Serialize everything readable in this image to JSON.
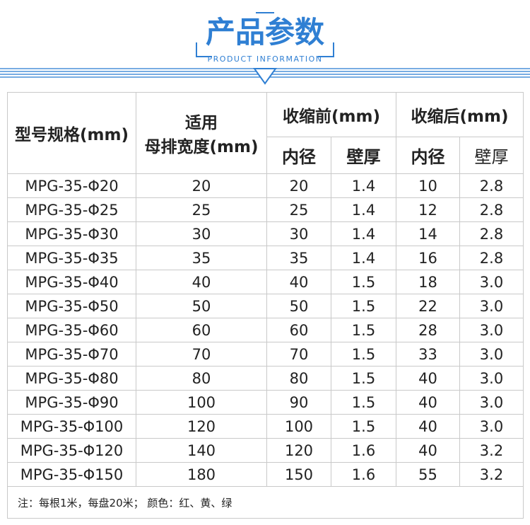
{
  "header": {
    "title": "产品参数",
    "subtitle": "PRODUCT INFORMATION"
  },
  "table": {
    "headers": {
      "model": "型号规格(mm)",
      "busbar_line1": "适用",
      "busbar_line2": "母排宽度(mm)",
      "before": "收缩前(mm)",
      "after": "收缩后(mm)",
      "sub": [
        "内径",
        "壁厚",
        "内径",
        "壁厚"
      ]
    },
    "rows": [
      [
        "MPG-35-Φ20",
        "20",
        "20",
        "1.4",
        "10",
        "2.8"
      ],
      [
        "MPG-35-Φ25",
        "25",
        "25",
        "1.4",
        "12",
        "2.8"
      ],
      [
        "MPG-35-Φ30",
        "30",
        "30",
        "1.4",
        "14",
        "2.8"
      ],
      [
        "MPG-35-Φ35",
        "35",
        "35",
        "1.4",
        "16",
        "2.8"
      ],
      [
        "MPG-35-Φ40",
        "40",
        "40",
        "1.5",
        "18",
        "3.0"
      ],
      [
        "MPG-35-Φ50",
        "50",
        "50",
        "1.5",
        "22",
        "3.0"
      ],
      [
        "MPG-35-Φ60",
        "60",
        "60",
        "1.5",
        "28",
        "3.0"
      ],
      [
        "MPG-35-Φ70",
        "70",
        "70",
        "1.5",
        "33",
        "3.0"
      ],
      [
        "MPG-35-Φ80",
        "80",
        "80",
        "1.5",
        "40",
        "3.0"
      ],
      [
        "MPG-35-Φ90",
        "100",
        "90",
        "1.5",
        "40",
        "3.0"
      ],
      [
        "MPG-35-Φ100",
        "120",
        "100",
        "1.5",
        "40",
        "3.0"
      ],
      [
        "MPG-35-Φ120",
        "140",
        "120",
        "1.6",
        "40",
        "3.2"
      ],
      [
        "MPG-35-Φ150",
        "180",
        "150",
        "1.6",
        "55",
        "3.2"
      ]
    ]
  },
  "note": "注：每根1米，每盘20米；   颜色：红、黄、绿"
}
